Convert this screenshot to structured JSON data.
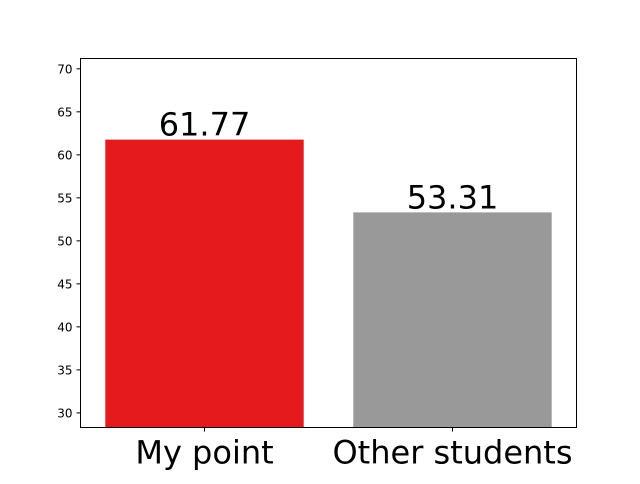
{
  "chart_data": {
    "type": "bar",
    "categories": [
      "My point",
      "Other students"
    ],
    "values": [
      61.77,
      53.31
    ],
    "data_labels": [
      "61.77",
      "53.31"
    ],
    "bar_colors": [
      "#e41a1c",
      "#999999"
    ],
    "title": "",
    "xlabel": "",
    "ylabel": "",
    "ylim": [
      28.3,
      71.2
    ],
    "yticks": [
      30,
      35,
      40,
      45,
      50,
      55,
      60,
      65,
      70
    ],
    "grid": false,
    "legend": "none"
  }
}
